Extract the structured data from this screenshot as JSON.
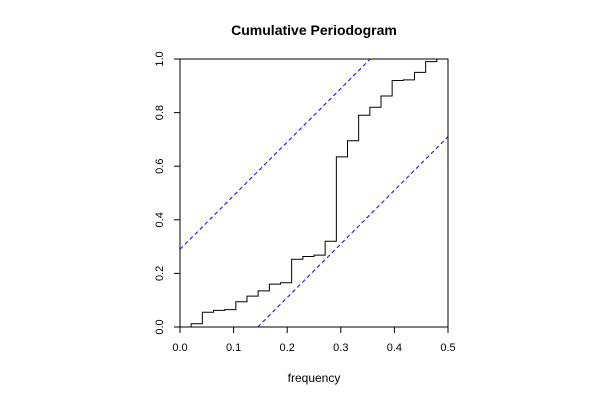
{
  "chart_data": {
    "type": "line",
    "title": "Cumulative Periodogram",
    "xlabel": "frequency",
    "ylabel": "",
    "xlim": [
      0,
      0.5
    ],
    "ylim": [
      0,
      1
    ],
    "xticks": [
      "0.0",
      "0.1",
      "0.2",
      "0.3",
      "0.4",
      "0.5"
    ],
    "yticks": [
      "0.0",
      "0.2",
      "0.4",
      "0.6",
      "0.8",
      "1.0"
    ],
    "grid": false,
    "series": [
      {
        "style": "step",
        "color": "#000000",
        "x": [
          0.0,
          0.0208,
          0.0417,
          0.0625,
          0.0833,
          0.1042,
          0.125,
          0.1458,
          0.1667,
          0.1875,
          0.2083,
          0.2292,
          0.25,
          0.2708,
          0.2917,
          0.3125,
          0.3333,
          0.3542,
          0.375,
          0.3958,
          0.4167,
          0.4375,
          0.4583,
          0.4792
        ],
        "y": [
          0.0,
          0.012,
          0.055,
          0.062,
          0.065,
          0.094,
          0.115,
          0.135,
          0.16,
          0.165,
          0.253,
          0.263,
          0.268,
          0.32,
          0.635,
          0.695,
          0.79,
          0.82,
          0.862,
          0.92,
          0.922,
          0.95,
          0.99,
          1.0
        ]
      },
      {
        "style": "dashed",
        "color": "#0000ff",
        "x": [
          0.0,
          0.355
        ],
        "y": [
          0.29,
          1.0
        ]
      },
      {
        "style": "dashed",
        "color": "#0000ff",
        "x": [
          0.145,
          0.5
        ],
        "y": [
          0.0,
          0.71
        ]
      }
    ]
  }
}
